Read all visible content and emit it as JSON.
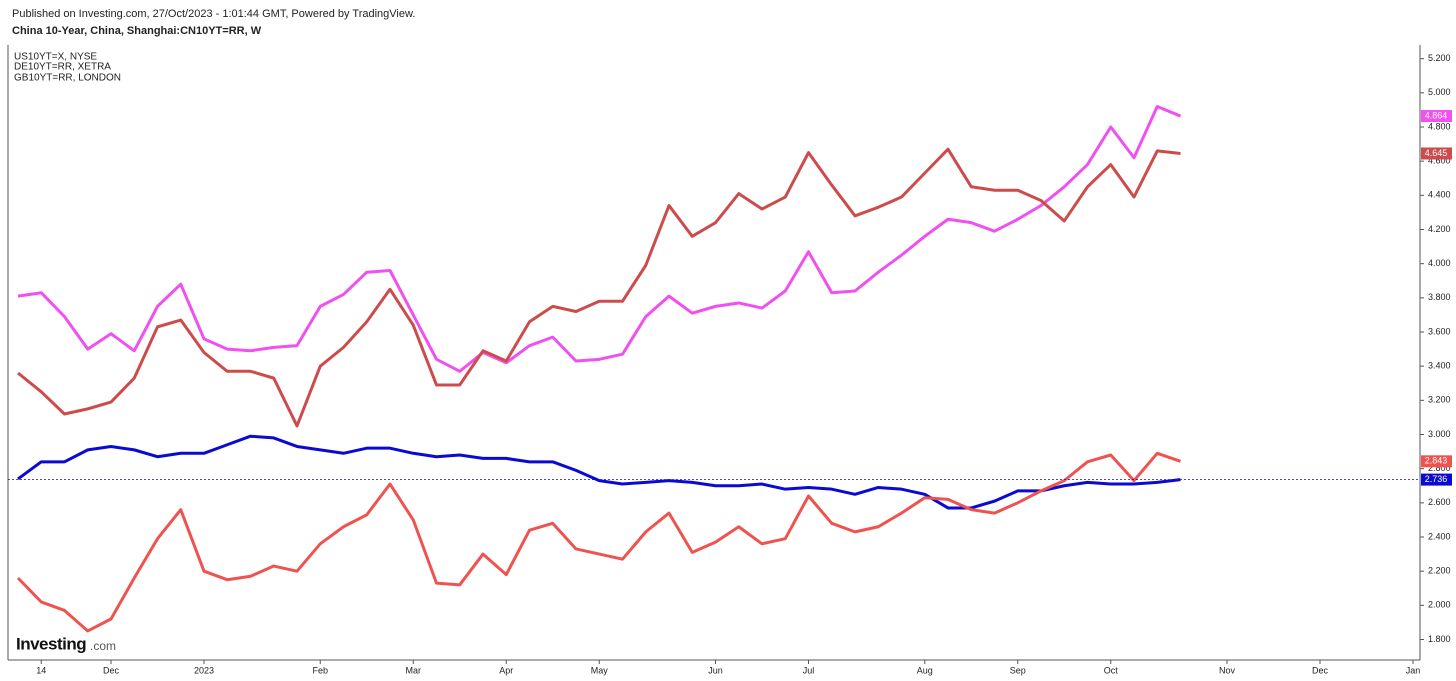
{
  "chart_data": {
    "type": "line",
    "source": "Published on Investing.com, 27/Oct/2023 - 1:01:44 GMT, Powered by TradingView.",
    "title": "China 10-Year, China, Shanghai:CN10YT=RR, W",
    "logo": [
      "Investing",
      ".com"
    ],
    "categories": [
      null,
      "14",
      null,
      null,
      "Dec",
      null,
      null,
      null,
      "2023",
      null,
      null,
      null,
      null,
      "Feb",
      null,
      null,
      null,
      "Mar",
      null,
      null,
      null,
      "Apr",
      null,
      null,
      null,
      "May",
      null,
      null,
      null,
      null,
      "Jun",
      null,
      null,
      null,
      "Jul",
      null,
      null,
      null,
      null,
      "Aug",
      null,
      null,
      null,
      "Sep",
      null,
      null,
      null,
      "Oct",
      null,
      null,
      null,
      null,
      "Nov",
      null,
      null,
      null,
      "Dec",
      null,
      null,
      null,
      "Jan"
    ],
    "series": [
      {
        "color": "#0a0ad2",
        "values": [
          2.74,
          2.84,
          2.84,
          2.91,
          2.93,
          2.91,
          2.87,
          2.89,
          2.89,
          2.94,
          2.99,
          2.98,
          2.93,
          2.91,
          2.89,
          2.92,
          2.92,
          2.89,
          2.87,
          2.88,
          2.86,
          2.86,
          2.84,
          2.84,
          2.79,
          2.73,
          2.71,
          2.72,
          2.73,
          2.72,
          2.7,
          2.7,
          2.71,
          2.68,
          2.69,
          2.68,
          2.65,
          2.69,
          2.68,
          2.65,
          2.57,
          2.57,
          2.61,
          2.67,
          2.67,
          2.7,
          2.72,
          2.71,
          2.71,
          2.72,
          2.736,
          null,
          null,
          null,
          null,
          null,
          null,
          null,
          null,
          null,
          null
        ]
      },
      {
        "name": "US10YT=X, NYSE",
        "color": "#f050f0",
        "values": [
          3.81,
          3.83,
          3.69,
          3.5,
          3.59,
          3.49,
          3.75,
          3.88,
          3.56,
          3.5,
          3.49,
          3.51,
          3.52,
          3.75,
          3.82,
          3.95,
          3.96,
          3.7,
          3.44,
          3.37,
          3.48,
          3.42,
          3.52,
          3.57,
          3.43,
          3.44,
          3.47,
          3.69,
          3.81,
          3.71,
          3.75,
          3.77,
          3.74,
          3.84,
          4.07,
          3.83,
          3.84,
          3.95,
          4.05,
          4.16,
          4.26,
          4.24,
          4.19,
          4.26,
          4.34,
          4.45,
          4.58,
          4.8,
          4.62,
          4.92,
          4.864,
          null,
          null,
          null,
          null,
          null,
          null,
          null,
          null,
          null,
          null
        ]
      },
      {
        "name": "DE10YT=RR, XETRA",
        "color": "#ef5350",
        "values": [
          2.16,
          2.02,
          1.97,
          1.85,
          1.92,
          2.16,
          2.39,
          2.56,
          2.2,
          2.15,
          2.17,
          2.23,
          2.2,
          2.36,
          2.46,
          2.53,
          2.71,
          2.5,
          2.13,
          2.12,
          2.3,
          2.18,
          2.44,
          2.48,
          2.33,
          2.3,
          2.27,
          2.43,
          2.54,
          2.31,
          2.37,
          2.46,
          2.36,
          2.39,
          2.64,
          2.48,
          2.43,
          2.46,
          2.54,
          2.63,
          2.62,
          2.56,
          2.54,
          2.6,
          2.67,
          2.73,
          2.84,
          2.88,
          2.73,
          2.89,
          2.843,
          null,
          null,
          null,
          null,
          null,
          null,
          null,
          null,
          null,
          null
        ]
      },
      {
        "name": "GB10YT=RR, LONDON",
        "color": "#cc4c4c",
        "values": [
          3.36,
          3.25,
          3.12,
          3.15,
          3.19,
          3.33,
          3.63,
          3.67,
          3.48,
          3.37,
          3.37,
          3.33,
          3.05,
          3.4,
          3.51,
          3.66,
          3.85,
          3.64,
          3.29,
          3.29,
          3.49,
          3.43,
          3.66,
          3.75,
          3.72,
          3.78,
          3.78,
          3.99,
          4.34,
          4.16,
          4.24,
          4.41,
          4.32,
          4.39,
          4.65,
          4.46,
          4.28,
          4.33,
          4.39,
          4.53,
          4.67,
          4.45,
          4.43,
          4.43,
          4.37,
          4.25,
          4.45,
          4.58,
          4.39,
          4.66,
          4.645,
          null,
          null,
          null,
          null,
          null,
          null,
          null,
          null,
          null,
          null
        ]
      }
    ],
    "ylim": [
      1.68,
      5.28
    ],
    "yticks": [
      {
        "value": 1.8,
        "label": "1.800"
      },
      {
        "value": 2.0,
        "label": "2.000"
      },
      {
        "value": 2.2,
        "label": "2.200"
      },
      {
        "value": 2.4,
        "label": "2.400"
      },
      {
        "value": 2.6,
        "label": "2.600"
      },
      {
        "value": 2.8,
        "label": "2.800"
      },
      {
        "value": 3.0,
        "label": "3.000"
      },
      {
        "value": 3.2,
        "label": "3.200"
      },
      {
        "value": 3.4,
        "label": "3.400"
      },
      {
        "value": 3.6,
        "label": "3.600"
      },
      {
        "value": 3.8,
        "label": "3.800"
      },
      {
        "value": 4.0,
        "label": "4.000"
      },
      {
        "value": 4.2,
        "label": "4.200"
      },
      {
        "value": 4.4,
        "label": "4.400"
      },
      {
        "value": 4.6,
        "label": "4.600"
      },
      {
        "value": 4.8,
        "label": "4.800"
      },
      {
        "value": 5.0,
        "label": "5.000"
      },
      {
        "value": 5.2,
        "label": "5.200"
      }
    ],
    "grid": false
  }
}
